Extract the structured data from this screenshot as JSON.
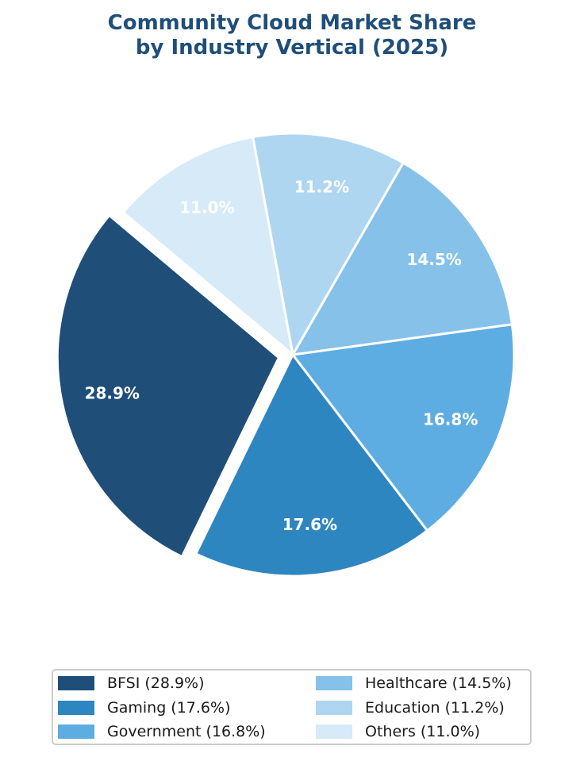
{
  "chart_data": {
    "type": "pie",
    "title": [
      "Community Cloud Market Share",
      "by Industry Vertical (2025)"
    ],
    "slices": [
      {
        "name": "BFSI",
        "value": 28.9,
        "label": "28.9%",
        "legend": "BFSI (28.9%)",
        "color": "#1f4e79",
        "exploded": true
      },
      {
        "name": "Gaming",
        "value": 17.6,
        "label": "17.6%",
        "legend": "Gaming (17.6%)",
        "color": "#2e86c1",
        "exploded": false
      },
      {
        "name": "Government",
        "value": 16.8,
        "label": "16.8%",
        "legend": "Government (16.8%)",
        "color": "#5dade2",
        "exploded": false
      },
      {
        "name": "Healthcare",
        "value": 14.5,
        "label": "14.5%",
        "legend": "Healthcare (14.5%)",
        "color": "#85c1e9",
        "exploded": false
      },
      {
        "name": "Education",
        "value": 11.2,
        "label": "11.2%",
        "legend": "Education (11.2%)",
        "color": "#aed6f1",
        "exploded": false
      },
      {
        "name": "Others",
        "value": 11.0,
        "label": "11.0%",
        "legend": "Others (11.0%)",
        "color": "#d6eaf8",
        "exploded": false
      }
    ],
    "legend_position": "bottom",
    "legend_columns": 2
  }
}
